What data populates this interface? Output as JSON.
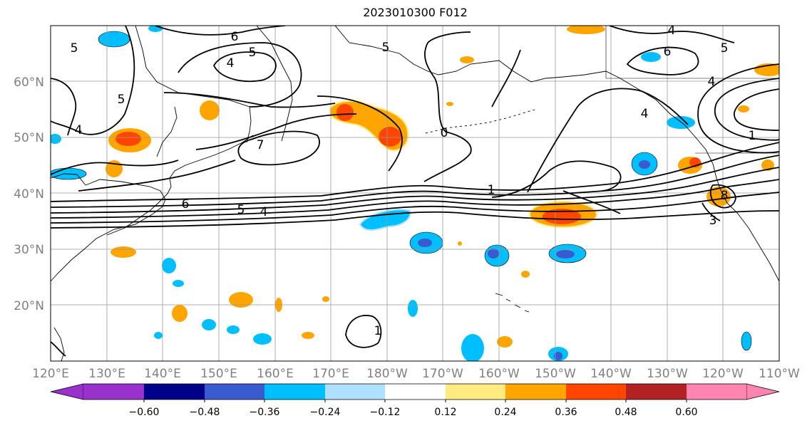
{
  "map": {
    "title": "2023010300 F012",
    "lat_labels": [
      "60°N",
      "50°N",
      "40°N",
      "30°N",
      "20°N"
    ],
    "lon_labels": [
      "120°E",
      "130°E",
      "140°E",
      "150°E",
      "160°E",
      "170°E",
      "180°W",
      "170°W",
      "160°W",
      "150°W",
      "140°W",
      "130°W",
      "120°W",
      "110°W"
    ],
    "contour_labels": [
      "6",
      "5",
      "4",
      "5",
      "4",
      "5",
      "5",
      "7",
      "6",
      "5",
      "4",
      "0",
      "1",
      "6",
      "4",
      "4",
      "8",
      "3",
      "1",
      "5",
      "4",
      "1"
    ],
    "tick_label_color": "#808080",
    "grid_color": "#999999"
  },
  "colorbar": {
    "tick_labels": [
      "−0.60",
      "−0.48",
      "−0.36",
      "−0.24",
      "−0.12",
      "0.12",
      "0.24",
      "0.36",
      "0.48",
      "0.60"
    ],
    "colors": [
      "#9932cc",
      "#00008b",
      "#3a5bcf",
      "#00bfff",
      "#b0e0ff",
      "#ffffff",
      "#ffeb80",
      "#ffa500",
      "#ff4500",
      "#b22222",
      "#ff85b0"
    ],
    "extend": "both"
  }
}
